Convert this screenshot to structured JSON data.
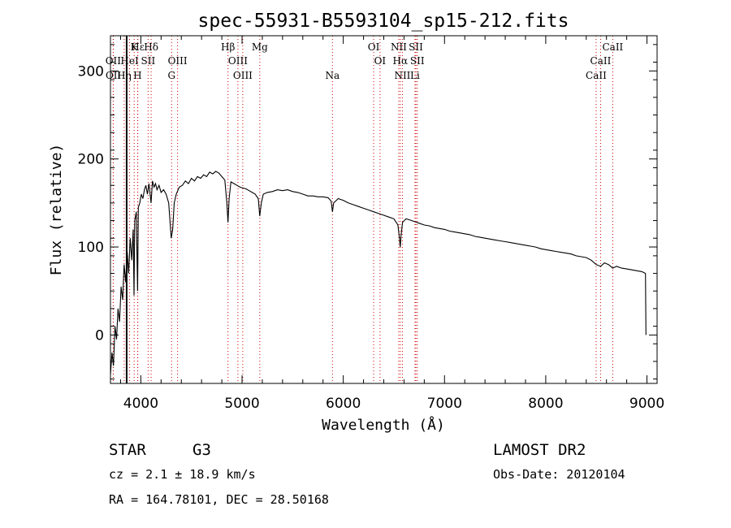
{
  "chart_data": {
    "type": "line",
    "title": "spec-55931-B5593104_sp15-212.fits",
    "xlabel": "Wavelength (Å)",
    "ylabel": "Flux (relative)",
    "xlim": [
      3700,
      9100
    ],
    "ylim": [
      -55,
      340
    ],
    "x_ticks": [
      4000,
      5000,
      6000,
      7000,
      8000,
      9000
    ],
    "y_ticks": [
      0,
      100,
      200,
      300
    ],
    "grid": false,
    "series": [
      {
        "points": [
          [
            3700,
            -45
          ],
          [
            3715,
            -20
          ],
          [
            3730,
            -35
          ],
          [
            3745,
            10
          ],
          [
            3760,
            -5
          ],
          [
            3775,
            30
          ],
          [
            3790,
            15
          ],
          [
            3805,
            55
          ],
          [
            3820,
            40
          ],
          [
            3835,
            80
          ],
          [
            3850,
            60
          ],
          [
            3865,
            95
          ],
          [
            3880,
            70
          ],
          [
            3895,
            110
          ],
          [
            3910,
            85
          ],
          [
            3925,
            120
          ],
          [
            3933,
            45
          ],
          [
            3940,
            130
          ],
          [
            3955,
            140
          ],
          [
            3968,
            50
          ],
          [
            3975,
            145
          ],
          [
            3990,
            150
          ],
          [
            4005,
            160
          ],
          [
            4020,
            155
          ],
          [
            4035,
            165
          ],
          [
            4050,
            170
          ],
          [
            4065,
            160
          ],
          [
            4080,
            172
          ],
          [
            4101,
            150
          ],
          [
            4115,
            175
          ],
          [
            4130,
            168
          ],
          [
            4145,
            172
          ],
          [
            4160,
            165
          ],
          [
            4180,
            170
          ],
          [
            4200,
            162
          ],
          [
            4225,
            165
          ],
          [
            4250,
            160
          ],
          [
            4275,
            150
          ],
          [
            4300,
            110
          ],
          [
            4315,
            120
          ],
          [
            4330,
            150
          ],
          [
            4350,
            160
          ],
          [
            4380,
            168
          ],
          [
            4410,
            170
          ],
          [
            4440,
            175
          ],
          [
            4470,
            172
          ],
          [
            4500,
            178
          ],
          [
            4530,
            175
          ],
          [
            4560,
            180
          ],
          [
            4590,
            178
          ],
          [
            4620,
            182
          ],
          [
            4650,
            180
          ],
          [
            4680,
            185
          ],
          [
            4710,
            183
          ],
          [
            4740,
            186
          ],
          [
            4770,
            184
          ],
          [
            4800,
            180
          ],
          [
            4830,
            176
          ],
          [
            4850,
            150
          ],
          [
            4861,
            128
          ],
          [
            4872,
            155
          ],
          [
            4890,
            174
          ],
          [
            4920,
            172
          ],
          [
            4950,
            170
          ],
          [
            4980,
            168
          ],
          [
            5010,
            167
          ],
          [
            5040,
            166
          ],
          [
            5070,
            164
          ],
          [
            5100,
            162
          ],
          [
            5130,
            160
          ],
          [
            5160,
            155
          ],
          [
            5175,
            135
          ],
          [
            5190,
            150
          ],
          [
            5210,
            160
          ],
          [
            5250,
            162
          ],
          [
            5300,
            163
          ],
          [
            5350,
            165
          ],
          [
            5400,
            164
          ],
          [
            5450,
            165
          ],
          [
            5500,
            163
          ],
          [
            5550,
            162
          ],
          [
            5600,
            160
          ],
          [
            5650,
            158
          ],
          [
            5700,
            158
          ],
          [
            5750,
            157
          ],
          [
            5800,
            157
          ],
          [
            5850,
            156
          ],
          [
            5880,
            152
          ],
          [
            5893,
            140
          ],
          [
            5905,
            150
          ],
          [
            5950,
            155
          ],
          [
            6000,
            153
          ],
          [
            6050,
            150
          ],
          [
            6100,
            148
          ],
          [
            6150,
            146
          ],
          [
            6200,
            144
          ],
          [
            6250,
            142
          ],
          [
            6300,
            140
          ],
          [
            6350,
            138
          ],
          [
            6400,
            136
          ],
          [
            6450,
            134
          ],
          [
            6500,
            132
          ],
          [
            6540,
            125
          ],
          [
            6555,
            110
          ],
          [
            6563,
            100
          ],
          [
            6570,
            112
          ],
          [
            6585,
            128
          ],
          [
            6620,
            132
          ],
          [
            6650,
            131
          ],
          [
            6700,
            129
          ],
          [
            6750,
            127
          ],
          [
            6800,
            125
          ],
          [
            6850,
            124
          ],
          [
            6900,
            122
          ],
          [
            6950,
            121
          ],
          [
            7000,
            120
          ],
          [
            7050,
            118
          ],
          [
            7100,
            117
          ],
          [
            7150,
            116
          ],
          [
            7200,
            115
          ],
          [
            7250,
            114
          ],
          [
            7300,
            112
          ],
          [
            7350,
            111
          ],
          [
            7400,
            110
          ],
          [
            7450,
            109
          ],
          [
            7500,
            108
          ],
          [
            7550,
            107
          ],
          [
            7600,
            106
          ],
          [
            7650,
            105
          ],
          [
            7700,
            104
          ],
          [
            7750,
            103
          ],
          [
            7800,
            102
          ],
          [
            7850,
            101
          ],
          [
            7900,
            100
          ],
          [
            7950,
            98
          ],
          [
            8000,
            97
          ],
          [
            8050,
            96
          ],
          [
            8100,
            95
          ],
          [
            8150,
            94
          ],
          [
            8200,
            93
          ],
          [
            8250,
            92
          ],
          [
            8300,
            90
          ],
          [
            8350,
            89
          ],
          [
            8400,
            88
          ],
          [
            8450,
            85
          ],
          [
            8498,
            80
          ],
          [
            8542,
            78
          ],
          [
            8580,
            82
          ],
          [
            8620,
            80
          ],
          [
            8662,
            76
          ],
          [
            8700,
            78
          ],
          [
            8750,
            76
          ],
          [
            8800,
            75
          ],
          [
            8850,
            74
          ],
          [
            8900,
            73
          ],
          [
            8950,
            72
          ],
          [
            8985,
            70
          ],
          [
            8990,
            0
          ]
        ]
      }
    ],
    "markers": [
      {
        "x": 3860,
        "color": "#000000"
      }
    ],
    "lines": [
      {
        "label": "Hε",
        "x": 3970,
        "row": 1
      },
      {
        "label": "K",
        "x": 3934,
        "row": 1
      },
      {
        "label": "Hδ",
        "x": 4102,
        "row": 1
      },
      {
        "label": "Hβ",
        "x": 4861,
        "row": 1
      },
      {
        "label": "Mg",
        "x": 5175,
        "row": 1
      },
      {
        "label": "OI",
        "x": 6300,
        "row": 1
      },
      {
        "label": "NII",
        "x": 6548,
        "row": 1
      },
      {
        "label": "SII",
        "x": 6717,
        "row": 1
      },
      {
        "label": "CaII",
        "x": 8662,
        "row": 1
      },
      {
        "label": "OII",
        "x": 3727,
        "row": 2
      },
      {
        "label": "HeI",
        "x": 3889,
        "row": 2
      },
      {
        "label": "SII",
        "x": 4072,
        "row": 2
      },
      {
        "label": "OIII",
        "x": 4363,
        "row": 2
      },
      {
        "label": "OIII",
        "x": 4959,
        "row": 2
      },
      {
        "label": "OI",
        "x": 6363,
        "row": 2
      },
      {
        "label": "Hα",
        "x": 6563,
        "row": 2
      },
      {
        "label": "SII",
        "x": 6731,
        "row": 2
      },
      {
        "label": "CaII",
        "x": 8542,
        "row": 2
      },
      {
        "label": "OII",
        "x": 3729,
        "row": 3
      },
      {
        "label": "Hη",
        "x": 3835,
        "row": 3
      },
      {
        "label": "H",
        "x": 3968,
        "row": 3
      },
      {
        "label": "G",
        "x": 4304,
        "row": 3
      },
      {
        "label": "OIII",
        "x": 5007,
        "row": 3
      },
      {
        "label": "Na",
        "x": 5893,
        "row": 3
      },
      {
        "label": "NII",
        "x": 6584,
        "row": 3
      },
      {
        "label": "Li",
        "x": 6708,
        "row": 3
      },
      {
        "label": "CaII",
        "x": 8498,
        "row": 3
      }
    ]
  },
  "info": {
    "object_type": "STAR",
    "subclass": "G3",
    "survey": "LAMOST DR2",
    "cz": "cz = 2.1 ± 18.9 km/s",
    "obs_date": "Obs-Date: 20120104",
    "coords": "RA = 164.78101, DEC =  28.50168"
  }
}
